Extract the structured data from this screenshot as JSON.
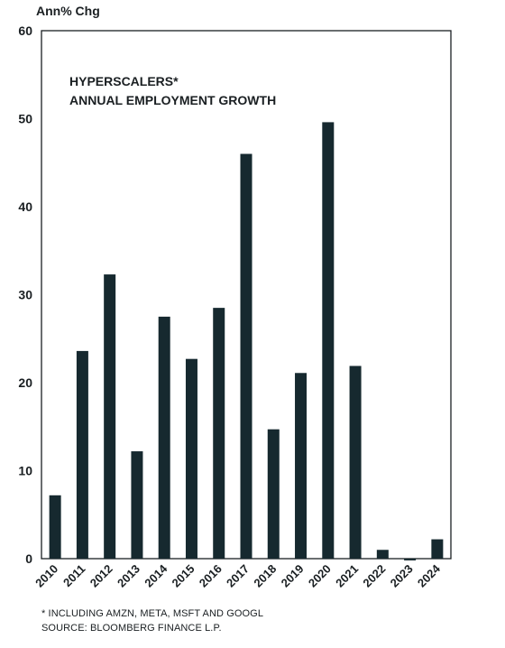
{
  "chart_data": {
    "type": "bar",
    "ylabel": "Ann% Chg",
    "title_lines": [
      "HYPERSCALERS*",
      "ANNUAL EMPLOYMENT GROWTH"
    ],
    "categories": [
      "2010",
      "2011",
      "2012",
      "2013",
      "2014",
      "2015",
      "2016",
      "2017",
      "2018",
      "2019",
      "2020",
      "2021",
      "2022",
      "2023",
      "2024"
    ],
    "values": [
      7.2,
      23.6,
      32.3,
      12.2,
      27.5,
      22.7,
      28.5,
      46.0,
      14.7,
      21.1,
      49.6,
      21.9,
      1.0,
      -0.2,
      2.2
    ],
    "ylim": [
      0,
      60
    ],
    "yticks": [
      "0",
      "10",
      "20",
      "30",
      "40",
      "50",
      "60"
    ],
    "grid": false,
    "bar_color": "#16292f"
  },
  "footnotes": {
    "note": "* INCLUDING AMZN, META, MSFT AND GOOGL",
    "source": "SOURCE: BLOOMBERG FINANCE L.P."
  }
}
